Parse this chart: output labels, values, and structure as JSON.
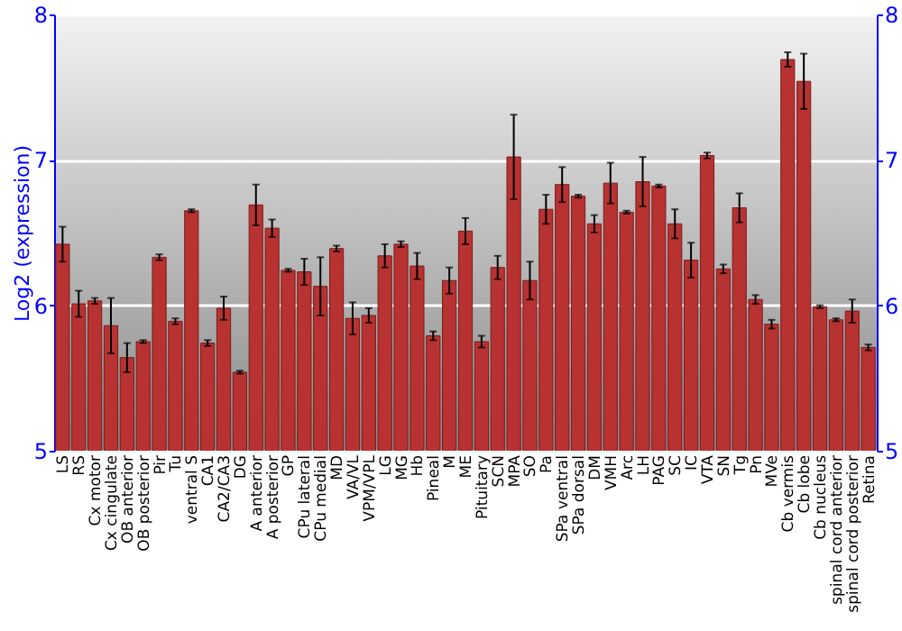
{
  "chart_data": {
    "type": "bar",
    "ylabel": "Log2 (expression)",
    "categories": [
      "LS",
      "RS",
      "Cx motor",
      "Cx cingulate",
      "OB anterior",
      "OB posterior",
      "Pir",
      "Tu",
      "ventral S",
      "CA1",
      "CA2/CA3",
      "DG",
      "A anterior",
      "A posterior",
      "GP",
      "CPu lateral",
      "CPu medial",
      "MD",
      "VA/VL",
      "VPM/VPL",
      "LG",
      "MG",
      "Hb",
      "Pineal",
      "M",
      "ME",
      "Pituitary",
      "SCN",
      "MPA",
      "SO",
      "Pa",
      "SPa ventral",
      "SPa dorsal",
      "DM",
      "VMH",
      "Arc",
      "LH",
      "PAG",
      "SC",
      "IC",
      "VTA",
      "SN",
      "Tg",
      "Pn",
      "MVe",
      "Cb vermis",
      "Cb lobe",
      "Cb nucleus",
      "spinal cord anterior",
      "spinal cord posterior",
      "Retina"
    ],
    "values": [
      6.42,
      6.01,
      6.03,
      5.86,
      5.64,
      5.75,
      6.33,
      5.89,
      6.65,
      5.74,
      5.98,
      5.54,
      6.69,
      6.53,
      6.24,
      6.23,
      6.13,
      6.39,
      5.91,
      5.93,
      6.34,
      6.42,
      6.27,
      5.79,
      6.17,
      6.51,
      5.75,
      6.26,
      7.02,
      6.17,
      6.66,
      6.83,
      6.75,
      6.56,
      6.84,
      6.64,
      6.85,
      6.82,
      6.56,
      6.31,
      7.03,
      6.25,
      6.67,
      6.04,
      5.87,
      7.69,
      7.54,
      5.99,
      5.9,
      5.96,
      5.71
    ],
    "errors": [
      0.12,
      0.09,
      0.02,
      0.19,
      0.1,
      0.01,
      0.02,
      0.02,
      0.01,
      0.02,
      0.08,
      0.01,
      0.14,
      0.06,
      0.01,
      0.09,
      0.2,
      0.02,
      0.11,
      0.05,
      0.08,
      0.02,
      0.09,
      0.03,
      0.09,
      0.09,
      0.04,
      0.08,
      0.29,
      0.13,
      0.1,
      0.12,
      0.01,
      0.06,
      0.14,
      0.01,
      0.17,
      0.01,
      0.1,
      0.12,
      0.02,
      0.03,
      0.1,
      0.03,
      0.03,
      0.05,
      0.19,
      0.01,
      0.01,
      0.08,
      0.02
    ],
    "color": "#b83232",
    "ylim": [
      5,
      8
    ],
    "yticks": [
      5,
      6,
      7,
      8
    ],
    "y2lim": [
      5,
      8
    ],
    "y2ticks": [
      5,
      6,
      7,
      8
    ],
    "grid": "y"
  }
}
